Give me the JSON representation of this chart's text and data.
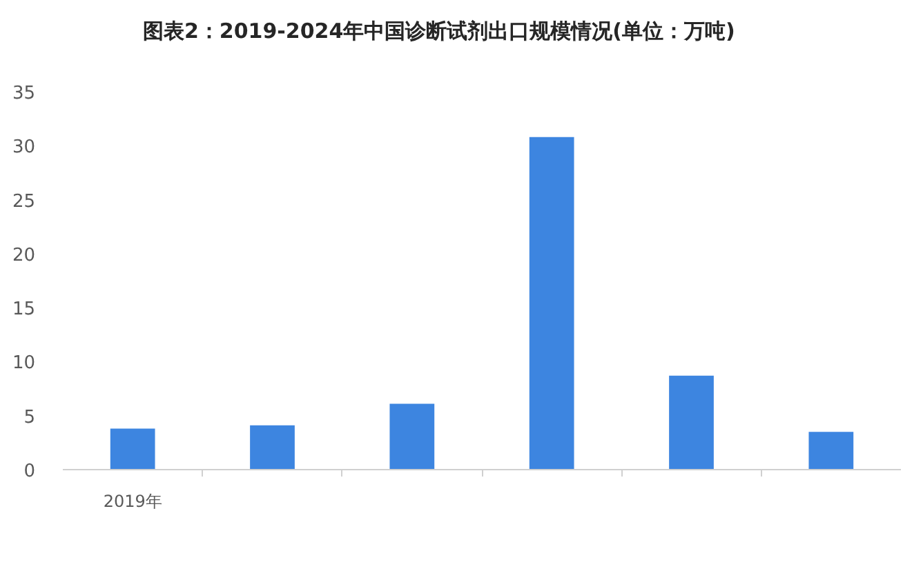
{
  "chart_data": {
    "type": "bar",
    "title": "图表2：2019-2024年中国诊断试剂出口规模情况(单位：万吨)",
    "categories": [
      "2019年",
      null,
      null,
      null,
      null,
      null
    ],
    "values": [
      3.8,
      4.1,
      6.1,
      30.8,
      8.7,
      3.5
    ],
    "color": "#3d85e0",
    "ylim": [
      0,
      35
    ],
    "yticks": [
      0,
      5,
      10,
      15,
      20,
      25,
      30,
      35
    ]
  }
}
